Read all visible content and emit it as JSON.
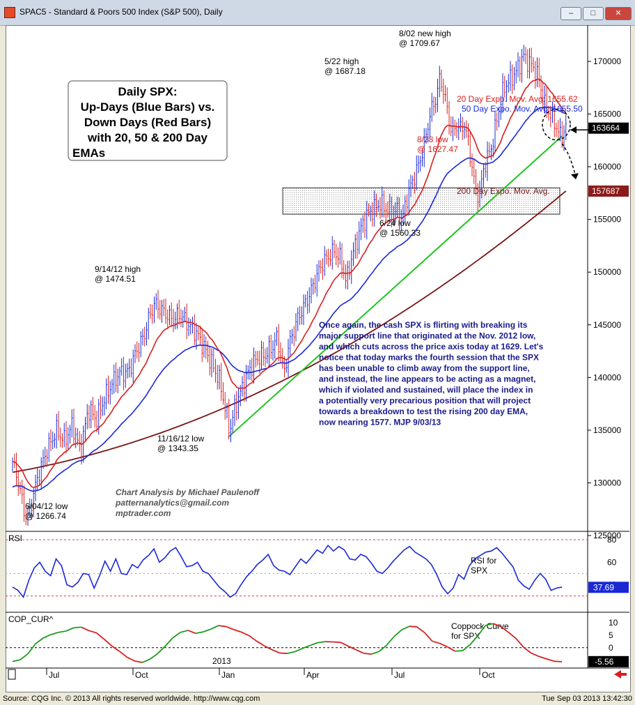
{
  "window": {
    "title": "SPAC5 - Standard & Poors 500 Index (S&P 500), Daily",
    "buttons": {
      "minimize": "–",
      "maximize": "□",
      "close": "✕"
    }
  },
  "status": {
    "source": "Source: CQG Inc. © 2013 All rights reserved worldwide. http://www.cqg.com",
    "timestamp": "Tue Sep 03 2013 13:42:30"
  },
  "chart_data": [
    {
      "type": "candlestick",
      "title": "Daily SPX:\nUp-Days (Blue Bars) vs.\nDown Days (Red Bars)\nwith 20, 50 & 200 Day\nEMAs",
      "ylim": [
        1240,
        1745
      ],
      "yticks": [
        125000,
        130000,
        135000,
        140000,
        145000,
        150000,
        155000,
        160000,
        165000,
        170000
      ],
      "xticks": [
        "Jul",
        "Oct",
        "Jan",
        "Apr",
        "Jul",
        "Oct"
      ],
      "year_label": "2013",
      "price_badges": [
        {
          "label": "163664",
          "value": 1636.64,
          "bg": "#000000",
          "fg": "#ffffff"
        },
        {
          "label": "157687",
          "value": 1576.87,
          "bg": "#8b1a1a",
          "fg": "#ffffff"
        }
      ],
      "price_path": [
        [
          0,
          1320
        ],
        [
          3,
          1300
        ],
        [
          6,
          1272
        ],
        [
          8,
          1267
        ],
        [
          10,
          1285
        ],
        [
          13,
          1308
        ],
        [
          17,
          1330
        ],
        [
          22,
          1350
        ],
        [
          26,
          1340
        ],
        [
          30,
          1355
        ],
        [
          34,
          1330
        ],
        [
          38,
          1370
        ],
        [
          42,
          1360
        ],
        [
          46,
          1380
        ],
        [
          50,
          1395
        ],
        [
          54,
          1405
        ],
        [
          58,
          1405
        ],
        [
          62,
          1425
        ],
        [
          66,
          1440
        ],
        [
          68,
          1455
        ],
        [
          71,
          1470
        ],
        [
          73,
          1467
        ],
        [
          77,
          1460
        ],
        [
          80,
          1455
        ],
        [
          84,
          1460
        ],
        [
          88,
          1450
        ],
        [
          92,
          1442
        ],
        [
          95,
          1432
        ],
        [
          98,
          1420
        ],
        [
          101,
          1408
        ],
        [
          104,
          1395
        ],
        [
          106,
          1375
        ],
        [
          108,
          1356
        ],
        [
          109,
          1350
        ],
        [
          111,
          1370
        ],
        [
          114,
          1385
        ],
        [
          118,
          1405
        ],
        [
          121,
          1415
        ],
        [
          124,
          1420
        ],
        [
          126,
          1420
        ],
        [
          128,
          1425
        ],
        [
          130,
          1428
        ],
        [
          132,
          1438
        ],
        [
          134,
          1425
        ],
        [
          136,
          1403
        ],
        [
          138,
          1428
        ],
        [
          140,
          1440
        ],
        [
          143,
          1457
        ],
        [
          146,
          1468
        ],
        [
          149,
          1480
        ],
        [
          152,
          1495
        ],
        [
          155,
          1508
        ],
        [
          158,
          1515
        ],
        [
          161,
          1520
        ],
        [
          164,
          1513
        ],
        [
          166,
          1500
        ],
        [
          167,
          1490
        ],
        [
          169,
          1508
        ],
        [
          172,
          1528
        ],
        [
          175,
          1545
        ],
        [
          178,
          1555
        ],
        [
          181,
          1560
        ],
        [
          184,
          1565
        ],
        [
          187,
          1560
        ],
        [
          190,
          1556
        ],
        [
          193,
          1558
        ],
        [
          195,
          1548
        ],
        [
          197,
          1568
        ],
        [
          200,
          1585
        ],
        [
          203,
          1600
        ],
        [
          206,
          1620
        ],
        [
          209,
          1650
        ],
        [
          212,
          1665
        ],
        [
          214,
          1685
        ],
        [
          216,
          1670
        ],
        [
          218,
          1650
        ],
        [
          220,
          1630
        ],
        [
          222,
          1640
        ],
        [
          224,
          1635
        ],
        [
          226,
          1640
        ],
        [
          228,
          1625
        ],
        [
          230,
          1600
        ],
        [
          232,
          1575
        ],
        [
          234,
          1575
        ],
        [
          236,
          1600
        ],
        [
          238,
          1610
        ],
        [
          240,
          1620
        ],
        [
          242,
          1640
        ],
        [
          244,
          1660
        ],
        [
          246,
          1675
        ],
        [
          248,
          1680
        ],
        [
          250,
          1685
        ],
        [
          252,
          1690
        ],
        [
          254,
          1698
        ],
        [
          256,
          1705
        ],
        [
          258,
          1700
        ],
        [
          260,
          1696
        ],
        [
          262,
          1690
        ],
        [
          264,
          1680
        ],
        [
          266,
          1660
        ],
        [
          268,
          1655
        ],
        [
          270,
          1645
        ],
        [
          272,
          1640
        ],
        [
          273,
          1632
        ],
        [
          275,
          1630
        ],
        [
          277,
          1637
        ]
      ],
      "ema20": {
        "name": "20 Day Expo. Mov. Avg: 1655.62",
        "color": "#d81e1e",
        "last": 1655.62
      },
      "ema50": {
        "name": "50 Day Expo. Mov. Avg: 1655.50",
        "color": "#1a28d6",
        "last": 1655.5
      },
      "ema200": {
        "name": "200 Day Expo. Mov. Avg.",
        "color": "#7a1414",
        "start": 1310,
        "end": 1577
      },
      "support_line": {
        "color": "#1ec41e",
        "points": [
          [
            108,
            1343.35
          ],
          [
            275,
            1629
          ]
        ]
      },
      "support_zone": {
        "low": 1555,
        "high": 1580,
        "from": 168,
        "to": 280
      },
      "annotations": [
        {
          "label": "8/02 new high\n@ 1709.67",
          "x": 256,
          "y": 1709.67,
          "color": "#000000"
        },
        {
          "label": "5/22 high\n@ 1687.18",
          "x": 214,
          "y": 1687.18,
          "color": "#000000"
        },
        {
          "label": "9/14/12 high\n@ 1474.51",
          "x": 71,
          "y": 1474.51,
          "color": "#000000"
        },
        {
          "label": "11/16/12 low\n@ 1343.35",
          "x": 109,
          "y": 1343.35,
          "color": "#000000"
        },
        {
          "label": "6/04/12 low\n@ 1266.74",
          "x": 8,
          "y": 1266.74,
          "color": "#000000"
        },
        {
          "label": "6/24 low\n@ 1560.33",
          "x": 232,
          "y": 1560.33,
          "color": "#000000"
        },
        {
          "label": "8/28 low\n@ 1627.47",
          "x": 273,
          "y": 1627.47,
          "color": "#d81e1e"
        }
      ],
      "commentary": "Once again, the cash SPX is flirting with breaking its\nmajor support line that originated at the Nov. 2012 low,\nand which cuts across the price axis today at 1629. Let's\nnotice that today marks the fourth session that the SPX\nhas been unable to climb away from the support line,\nand instead, the line appears to be acting as a magnet,\nwhich if violated and sustained, will place the index in\na potentially very precarious position that will project\ntowards a breakdown to test the rising 200 day EMA,\nnow nearing 1577. MJP  9/03/13",
      "credit": "Chart Analysis by Michael Paulenoff\npatternanalytics@gmail.com\nmptrader.com"
    },
    {
      "type": "line",
      "name": "RSI",
      "label": "RSI for\nSPX",
      "ylim": [
        18,
        85
      ],
      "yticks": [
        80,
        60,
        40
      ],
      "last_value": "37.69",
      "color": "#1a28d6",
      "values": [
        38,
        35,
        29,
        44,
        55,
        60,
        52,
        48,
        63,
        57,
        40,
        38,
        42,
        50,
        49,
        37,
        48,
        61,
        52,
        63,
        50,
        49,
        58,
        55,
        62,
        66,
        72,
        60,
        64,
        70,
        73,
        65,
        56,
        57,
        60,
        52,
        50,
        44,
        38,
        34,
        29,
        32,
        40,
        47,
        52,
        58,
        62,
        67,
        57,
        53,
        52,
        49,
        56,
        63,
        59,
        65,
        71,
        68,
        75,
        70,
        74,
        71,
        63,
        62,
        67,
        65,
        59,
        52,
        50,
        55,
        61,
        66,
        71,
        74,
        69,
        66,
        63,
        58,
        49,
        38,
        32,
        37,
        49,
        45,
        57,
        63,
        66,
        69,
        70,
        73,
        68,
        62,
        56,
        44,
        39,
        36,
        44,
        50,
        45,
        35,
        37,
        38
      ]
    },
    {
      "type": "line",
      "name": "COP_CUR^",
      "label": "Coppock Curve\nfor SPX",
      "ylim": [
        -7,
        13
      ],
      "yticks": [
        10,
        5,
        0,
        -5.56
      ],
      "tick_labels": [
        "10",
        "5",
        "0",
        "-5.56"
      ],
      "last_value": "-5.56",
      "colors": {
        "up": "#1c9c1c",
        "down": "#d81e1e"
      },
      "values": [
        -5.5,
        -4.8,
        -2.5,
        1.5,
        3.8,
        5.2,
        6.1,
        6.6,
        7.9,
        8.2,
        6.8,
        5.9,
        3.4,
        0.7,
        -1.4,
        -3.8,
        -5.3,
        -5.9,
        -4.6,
        -2.4,
        0.6,
        3.9,
        6.1,
        6.9,
        5.7,
        6.3,
        7.4,
        8.8,
        8.4,
        7.2,
        6.2,
        4.8,
        2.6,
        0.7,
        -0.8,
        -2.1,
        -2.3,
        -1.6,
        -0.3,
        0.9,
        2.0,
        2.4,
        2.3,
        2.1,
        0.6,
        -0.8,
        -2.2,
        -2.6,
        -1.6,
        0.9,
        4.4,
        7.1,
        8.5,
        8.3,
        6.0,
        2.6,
        1.7,
        0.3,
        -1.4,
        -1.2,
        1.3,
        4.8,
        8.9,
        9.6,
        8.4,
        6.1,
        3.6,
        0.1,
        -2.2,
        -3.5,
        -4.5,
        -5.4,
        -5.6
      ]
    }
  ]
}
